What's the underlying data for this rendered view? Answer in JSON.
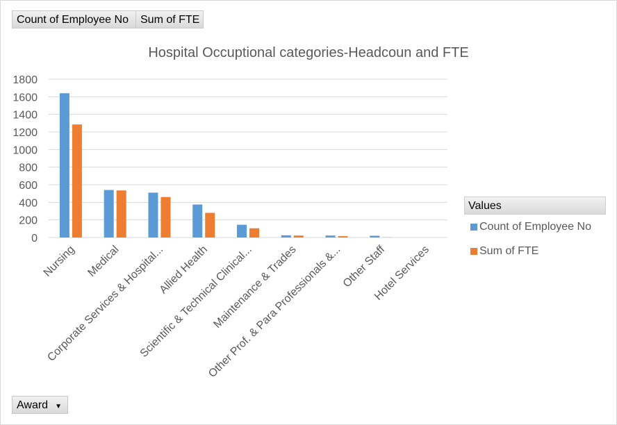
{
  "pivot_buttons": {
    "count_label": "Count of Employee No",
    "sum_label": "Sum of FTE",
    "award_label": "Award"
  },
  "legend": {
    "title": "Values",
    "placement": "right"
  },
  "colors": {
    "series1": "#5b9bd5",
    "series2": "#ed7d31",
    "grid": "#d9d9d9"
  },
  "chart_data": {
    "type": "bar",
    "title": "Hospital Occuptional categories-Headcoun and FTE",
    "xlabel": "",
    "ylabel": "",
    "ylim": [
      0,
      1800
    ],
    "yticks": [
      0,
      200,
      400,
      600,
      800,
      1000,
      1200,
      1400,
      1600,
      1800
    ],
    "grid": true,
    "categories": [
      "Nursing",
      "Medical",
      "Corporate Services & Hospital...",
      "Allied Health",
      "Scientific & Technical Clinical...",
      "Maintenance & Trades",
      "Other Prof. & Para Professionals &...",
      "Other Staff",
      "Hotel Services"
    ],
    "series": [
      {
        "name": "Count of Employee No",
        "values": [
          1640,
          540,
          510,
          375,
          145,
          25,
          22,
          20,
          0
        ]
      },
      {
        "name": "Sum of FTE",
        "values": [
          1285,
          535,
          460,
          280,
          105,
          22,
          15,
          2,
          0
        ]
      }
    ]
  }
}
